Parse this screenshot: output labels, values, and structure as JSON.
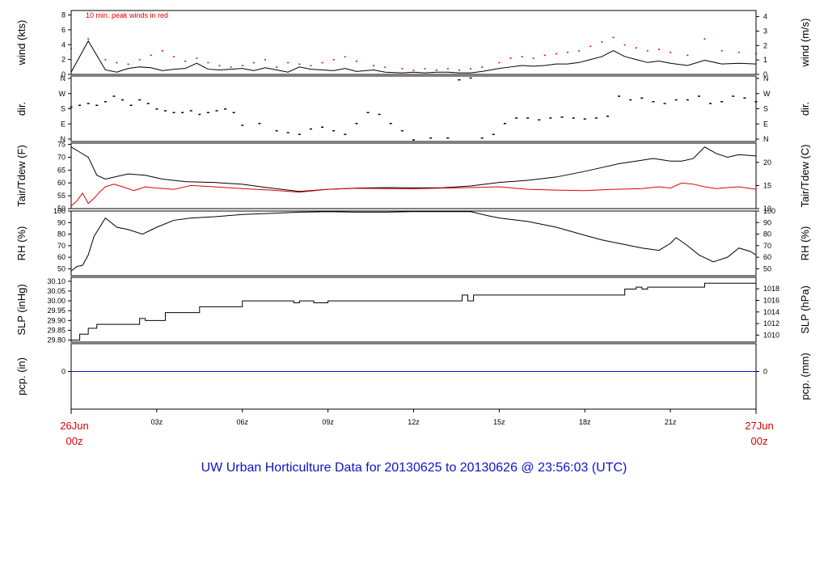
{
  "title": "UW Urban Horticulture Data for 20130625  to  20130626 @ 23:56:03  (UTC)",
  "chart_data": {
    "type": "line",
    "x_axis": {
      "start_label": [
        "26Jun",
        "00z"
      ],
      "end_label": [
        "27Jun",
        "00z"
      ],
      "hour_ticks": [
        "03z",
        "06z",
        "09z",
        "12z",
        "15z",
        "18z",
        "21z"
      ],
      "range_hours": [
        0,
        24
      ]
    },
    "panels": [
      {
        "id": "wind",
        "left_label": "wind (kts)",
        "right_label": "wind (m/s)",
        "left_ticks": [
          "0",
          "2",
          "4",
          "6",
          "8"
        ],
        "right_ticks": [
          "0",
          "1",
          "2",
          "3",
          "4"
        ],
        "ylim": [
          0,
          8.6
        ],
        "annotation": "10 min. peak winds in red",
        "series": [
          {
            "color": "#000000",
            "values": [
              0.3,
              4.5,
              0.6,
              0.3,
              0.8,
              1.0,
              0.9,
              0.5,
              0.7,
              0.8,
              1.5,
              0.7,
              0.6,
              0.7,
              0.8,
              0.5,
              0.9,
              0.6,
              0.3,
              1.0,
              0.7,
              0.6,
              0.5,
              0.8,
              0.4,
              0.6,
              0.3,
              0.2,
              0.3,
              0.2,
              0.3,
              0.3,
              0.2,
              0.2,
              0.4,
              0.8,
              1.0,
              1.2,
              1.1,
              1.2,
              1.4,
              1.4,
              1.6,
              2.0,
              2.4,
              3.2,
              2.4,
              2.0,
              1.6,
              1.8,
              1.5,
              1.2,
              1.9,
              1.4,
              1.5,
              1.4
            ],
            "x_hours": [
              0,
              0.6,
              1.2,
              1.6,
              2.0,
              2.4,
              2.8,
              3.2,
              3.6,
              4.0,
              4.4,
              4.8,
              5.2,
              5.6,
              6.0,
              6.4,
              6.8,
              7.2,
              7.6,
              8.0,
              8.4,
              8.8,
              9.2,
              9.6,
              10.0,
              10.6,
              11.0,
              11.6,
              12.0,
              12.4,
              12.8,
              13.2,
              13.6,
              14.0,
              14.4,
              15.0,
              15.4,
              15.8,
              16.2,
              16.6,
              17.0,
              17.4,
              17.8,
              18.2,
              18.6,
              19.0,
              19.4,
              19.8,
              20.2,
              20.6,
              21.0,
              21.6,
              22.2,
              22.8,
              23.4,
              24.0
            ]
          },
          {
            "color": "#e00000",
            "style": "dots",
            "values": [
              3.5,
              4.8,
              2.0,
              1.6,
              1.4,
              2.0,
              2.6,
              3.2,
              2.4,
              1.8,
              2.2,
              1.6,
              1.2,
              1.0,
              1.2,
              1.6,
              2.0,
              1.0,
              1.6,
              1.4,
              1.2,
              1.6,
              2.0,
              2.4,
              1.8,
              1.2,
              1.0,
              0.8,
              0.6,
              0.8,
              0.6,
              0.8,
              0.6,
              0.8,
              1.0,
              1.6,
              2.2,
              2.4,
              2.2,
              2.6,
              2.8,
              3.0,
              3.2,
              3.8,
              4.4,
              5.0,
              4.0,
              3.6,
              3.2,
              3.4,
              3.0,
              2.6,
              4.8,
              3.2,
              3.0,
              2.8
            ],
            "x_hours": [
              0,
              0.6,
              1.2,
              1.6,
              2.0,
              2.4,
              2.8,
              3.2,
              3.6,
              4.0,
              4.4,
              4.8,
              5.2,
              5.6,
              6.0,
              6.4,
              6.8,
              7.2,
              7.6,
              8.0,
              8.4,
              8.8,
              9.2,
              9.6,
              10.0,
              10.6,
              11.0,
              11.6,
              12.0,
              12.4,
              12.8,
              13.2,
              13.6,
              14.0,
              14.4,
              15.0,
              15.4,
              15.8,
              16.2,
              16.6,
              17.0,
              17.4,
              17.8,
              18.2,
              18.6,
              19.0,
              19.4,
              19.8,
              20.2,
              20.6,
              21.0,
              21.6,
              22.2,
              22.8,
              23.4,
              24.0
            ]
          }
        ]
      },
      {
        "id": "dir",
        "left_label": "dir.",
        "right_label": "dir.",
        "left_ticks": [
          "N",
          "E",
          "S",
          "W",
          "N"
        ],
        "right_ticks": [
          "N",
          "E",
          "S",
          "W",
          "N"
        ],
        "ylim": [
          0,
          360
        ],
        "series": [
          {
            "color": "#000000",
            "style": "dots",
            "x_hours": [
              0,
              0.3,
              0.6,
              0.9,
              1.2,
              1.5,
              1.8,
              2.1,
              2.4,
              2.7,
              3.0,
              3.3,
              3.6,
              3.9,
              4.2,
              4.5,
              4.8,
              5.1,
              5.4,
              5.7,
              6.0,
              6.6,
              7.2,
              7.6,
              8.0,
              8.4,
              8.8,
              9.2,
              9.6,
              10.0,
              10.4,
              10.8,
              11.2,
              11.6,
              12.0,
              12.6,
              13.2,
              13.6,
              14.0,
              14.4,
              14.8,
              15.2,
              15.6,
              16.0,
              16.4,
              16.8,
              17.2,
              17.6,
              18.0,
              18.4,
              18.8,
              19.2,
              19.6,
              20.0,
              20.4,
              20.8,
              21.2,
              21.6,
              22.0,
              22.4,
              22.8,
              23.2,
              23.6,
              24.0
            ],
            "values": [
              190,
              200,
              210,
              200,
              220,
              250,
              230,
              200,
              230,
              210,
              180,
              170,
              160,
              160,
              170,
              150,
              160,
              170,
              180,
              160,
              90,
              100,
              60,
              50,
              40,
              70,
              80,
              60,
              40,
              100,
              160,
              150,
              100,
              60,
              10,
              20,
              20,
              340,
              350,
              20,
              40,
              100,
              130,
              130,
              120,
              130,
              135,
              130,
              125,
              130,
              140,
              250,
              230,
              240,
              220,
              210,
              230,
              230,
              250,
              210,
              220,
              250,
              240,
              220
            ]
          }
        ]
      },
      {
        "id": "temp",
        "left_label": "Tair/Tdew (F)",
        "right_label": "Tair/Tdew (C)",
        "left_ticks": [
          "50",
          "55",
          "60",
          "65",
          "70",
          "75"
        ],
        "right_ticks": [
          "10",
          "15",
          "20"
        ],
        "ylim": [
          50,
          75.5
        ],
        "series": [
          {
            "name": "Tair",
            "color": "#000000",
            "x_hours": [
              0,
              0.3,
              0.6,
              0.9,
              1.2,
              1.6,
              2.0,
              2.6,
              3.2,
              4.0,
              5.0,
              6.0,
              7.0,
              8.0,
              9.0,
              10.0,
              11.0,
              12.0,
              13.0,
              14.0,
              15.0,
              16.0,
              17.0,
              18.0,
              18.6,
              19.2,
              19.8,
              20.4,
              21.0,
              21.4,
              21.8,
              22.2,
              22.6,
              23.0,
              23.4,
              24.0
            ],
            "values": [
              74,
              72,
              70,
              63,
              61.5,
              62.5,
              63.5,
              63,
              61.5,
              60.5,
              60.2,
              59.5,
              58,
              56.7,
              57.5,
              58,
              58.2,
              58.1,
              58.1,
              58.8,
              60.2,
              61,
              62.3,
              64.5,
              66,
              67.5,
              68.5,
              69.5,
              68.5,
              68.5,
              69.5,
              74,
              71.5,
              70,
              71,
              70.5
            ]
          },
          {
            "name": "Tdew",
            "color": "#e00000",
            "x_hours": [
              0,
              0.2,
              0.4,
              0.6,
              0.8,
              1.0,
              1.2,
              1.5,
              1.8,
              2.2,
              2.6,
              3.0,
              3.6,
              4.2,
              5.0,
              6.0,
              7.0,
              8.0,
              9.0,
              10.0,
              11.0,
              12.0,
              13.0,
              14.0,
              15.0,
              16.0,
              17.0,
              18.0,
              19.0,
              20.0,
              20.6,
              21.0,
              21.4,
              21.8,
              22.2,
              22.6,
              23.0,
              23.4,
              24.0
            ],
            "values": [
              51,
              53,
              56,
              52,
              54,
              56.5,
              58.5,
              59.5,
              58.5,
              57,
              58.5,
              58,
              57.5,
              59,
              58.5,
              57.8,
              57.2,
              56.4,
              57.5,
              57.9,
              57.8,
              57.7,
              58,
              58.2,
              58.5,
              57.5,
              57.2,
              57,
              57.5,
              57.8,
              58.5,
              58,
              60,
              59.5,
              58.5,
              57.8,
              58.2,
              58.5,
              57.5
            ]
          }
        ]
      },
      {
        "id": "rh",
        "left_label": "RH (%)",
        "right_label": "RH (%)",
        "left_ticks": [
          "50",
          "60",
          "70",
          "80",
          "90",
          "100"
        ],
        "right_ticks": [
          "50",
          "60",
          "70",
          "80",
          "90",
          "100"
        ],
        "ylim": [
          44,
          100
        ],
        "series": [
          {
            "color": "#000000",
            "x_hours": [
              0,
              0.2,
              0.4,
              0.6,
              0.8,
              1.0,
              1.2,
              1.6,
              2.0,
              2.5,
              3.0,
              3.6,
              4.2,
              5.0,
              6.0,
              7.0,
              8.0,
              9.0,
              10.0,
              11.0,
              12.0,
              13.0,
              14.0,
              14.6,
              15.0,
              16.0,
              17.0,
              18.0,
              18.6,
              19.2,
              20.0,
              20.6,
              21.0,
              21.2,
              21.6,
              22.0,
              22.5,
              23.0,
              23.4,
              23.8,
              24.0
            ],
            "values": [
              48,
              52,
              53,
              62,
              78,
              86,
              94,
              86,
              84,
              80,
              86,
              92,
              94,
              95,
              97,
              98,
              99,
              99.5,
              99,
              99,
              99.5,
              99.5,
              99.5,
              96,
              94,
              91,
              86,
              79,
              75,
              72,
              68,
              66,
              72,
              77,
              70,
              62,
              56,
              60,
              68,
              65,
              62
            ]
          }
        ]
      },
      {
        "id": "slp",
        "left_label": "SLP (inHg)",
        "right_label": "SLP (hPa)",
        "left_ticks": [
          "29.80",
          "29.85",
          "29.90",
          "29.95",
          "30.00",
          "30.05",
          "30.10"
        ],
        "right_ticks": [
          "1010",
          "1012",
          "1014",
          "1016",
          "1018"
        ],
        "ylim": [
          29.79,
          30.12
        ],
        "series": [
          {
            "color": "#000000",
            "style": "step",
            "x_hours": [
              0,
              0.3,
              0.6,
              0.9,
              2.4,
              2.6,
              3.3,
              4.5,
              6.0,
              7.8,
              8.0,
              8.5,
              9.0,
              9.2,
              12.0,
              13.7,
              13.9,
              14.1,
              14.6,
              17.0,
              19.4,
              19.8,
              20.0,
              20.2,
              22.2,
              22.4,
              24.0
            ],
            "values": [
              29.8,
              29.83,
              29.86,
              29.88,
              29.91,
              29.9,
              29.94,
              29.97,
              30.0,
              29.99,
              30.0,
              29.99,
              30.0,
              30.0,
              30.0,
              30.03,
              30.0,
              30.03,
              30.03,
              30.03,
              30.06,
              30.07,
              30.06,
              30.07,
              30.09,
              30.09,
              30.09
            ]
          }
        ]
      },
      {
        "id": "pcp",
        "left_label": "pcp. (in)",
        "right_label": "pcp. (mm)",
        "left_ticks": [
          "0"
        ],
        "right_ticks": [
          "0"
        ],
        "ylim": [
          -1,
          1
        ],
        "series": [
          {
            "color": "#1010d0",
            "x_hours": [
              0,
              24
            ],
            "values": [
              0,
              0
            ]
          }
        ]
      }
    ]
  }
}
